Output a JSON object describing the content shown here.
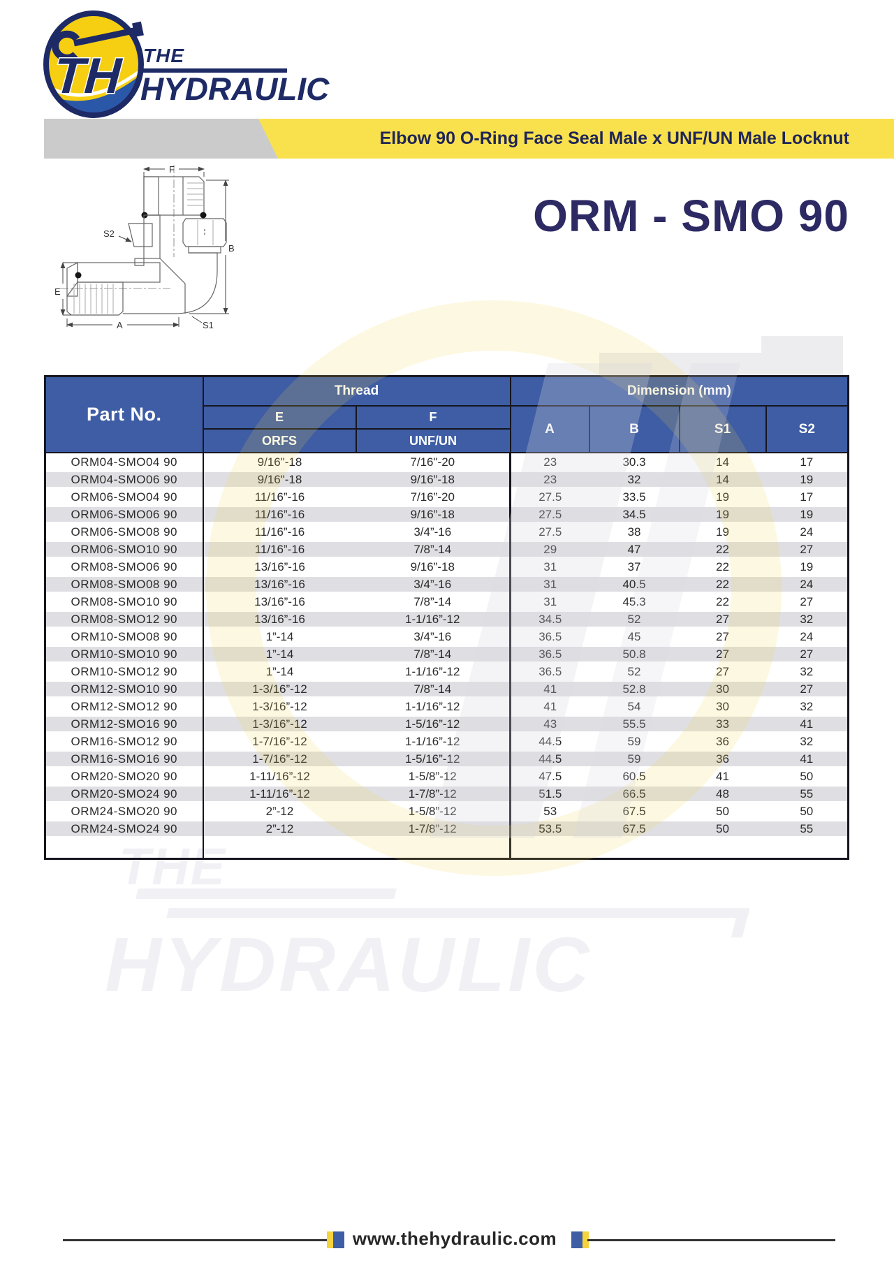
{
  "logo": {
    "the": "THE",
    "hydraulic": "HYDRAULIC"
  },
  "banner": {
    "title": "Elbow 90 O-Ring Face Seal Male x UNF/UN Male Locknut"
  },
  "product": {
    "model": "ORM - SMO 90"
  },
  "diagram": {
    "labels": {
      "f": "F",
      "b": "B",
      "s2": "S2",
      "e": "E",
      "a": "A",
      "s1": "S1"
    }
  },
  "table": {
    "header": {
      "part_no": "Part No.",
      "thread": "Thread",
      "dimension": "Dimension (mm)",
      "e": "E",
      "f": "F",
      "orfs": "ORFS",
      "unf_un": "UNF/UN",
      "a": "A",
      "b": "B",
      "s1": "S1",
      "s2": "S2"
    },
    "rows": [
      [
        "ORM04-SMO04 90",
        "9/16\"-18",
        "7/16\"-20",
        "23",
        "30.3",
        "14",
        "17"
      ],
      [
        "ORM04-SMO06 90",
        "9/16\"-18",
        "9/16”-18",
        "23",
        "32",
        "14",
        "19"
      ],
      [
        "ORM06-SMO04 90",
        "11/16”-16",
        "7/16”-20",
        "27.5",
        "33.5",
        "19",
        "17"
      ],
      [
        "ORM06-SMO06 90",
        "11/16”-16",
        "9/16”-18",
        "27.5",
        "34.5",
        "19",
        "19"
      ],
      [
        "ORM06-SMO08 90",
        "11/16”-16",
        "3/4”-16",
        "27.5",
        "38",
        "19",
        "24"
      ],
      [
        "ORM06-SMO10 90",
        "11/16”-16",
        "7/8”-14",
        "29",
        "47",
        "22",
        "27"
      ],
      [
        "ORM08-SMO06 90",
        "13/16”-16",
        "9/16”-18",
        "31",
        "37",
        "22",
        "19"
      ],
      [
        "ORM08-SMO08 90",
        "13/16”-16",
        "3/4”-16",
        "31",
        "40.5",
        "22",
        "24"
      ],
      [
        "ORM08-SMO10 90",
        "13/16”-16",
        "7/8”-14",
        "31",
        "45.3",
        "22",
        "27"
      ],
      [
        "ORM08-SMO12 90",
        "13/16”-16",
        "1-1/16”-12",
        "34.5",
        "52",
        "27",
        "32"
      ],
      [
        "ORM10-SMO08 90",
        "1”-14",
        "3/4”-16",
        "36.5",
        "45",
        "27",
        "24"
      ],
      [
        "ORM10-SMO10 90",
        "1”-14",
        "7/8”-14",
        "36.5",
        "50.8",
        "27",
        "27"
      ],
      [
        "ORM10-SMO12 90",
        "1”-14",
        "1-1/16”-12",
        "36.5",
        "52",
        "27",
        "32"
      ],
      [
        "ORM12-SMO10 90",
        "1-3/16”-12",
        "7/8”-14",
        "41",
        "52.8",
        "30",
        "27"
      ],
      [
        "ORM12-SMO12 90",
        "1-3/16”-12",
        "1-1/16”-12",
        "41",
        "54",
        "30",
        "32"
      ],
      [
        "ORM12-SMO16 90",
        "1-3/16”-12",
        "1-5/16”-12",
        "43",
        "55.5",
        "33",
        "41"
      ],
      [
        "ORM16-SMO12 90",
        "1-7/16”-12",
        "1-1/16”-12",
        "44.5",
        "59",
        "36",
        "32"
      ],
      [
        "ORM16-SMO16 90",
        "1-7/16”-12",
        "1-5/16”-12",
        "44.5",
        "59",
        "36",
        "41"
      ],
      [
        "ORM20-SMO20 90",
        "1-11/16”-12",
        "1-5/8”-12",
        "47.5",
        "60.5",
        "41",
        "50"
      ],
      [
        "ORM20-SMO24 90",
        "1-11/16”-12",
        "1-7/8”-12",
        "51.5",
        "66.5",
        "48",
        "55"
      ],
      [
        "ORM24-SMO20 90",
        "2”-12",
        "1-5/8”-12",
        "53",
        "67.5",
        "50",
        "50"
      ],
      [
        "ORM24-SMO24 90",
        "2”-12",
        "1-7/8”-12",
        "53.5",
        "67.5",
        "50",
        "55"
      ]
    ]
  },
  "watermark": {
    "the": "THE",
    "hydraulic": "HYDRAULIC"
  },
  "footer": {
    "url": "www.thehydraulic.com"
  },
  "colors": {
    "header_blue": "#3e5da4",
    "banner_yellow": "#f9e14d",
    "banner_gray": "#cbcbcb",
    "navy": "#1d2a66",
    "row_stripe": "#dfdfe3"
  }
}
